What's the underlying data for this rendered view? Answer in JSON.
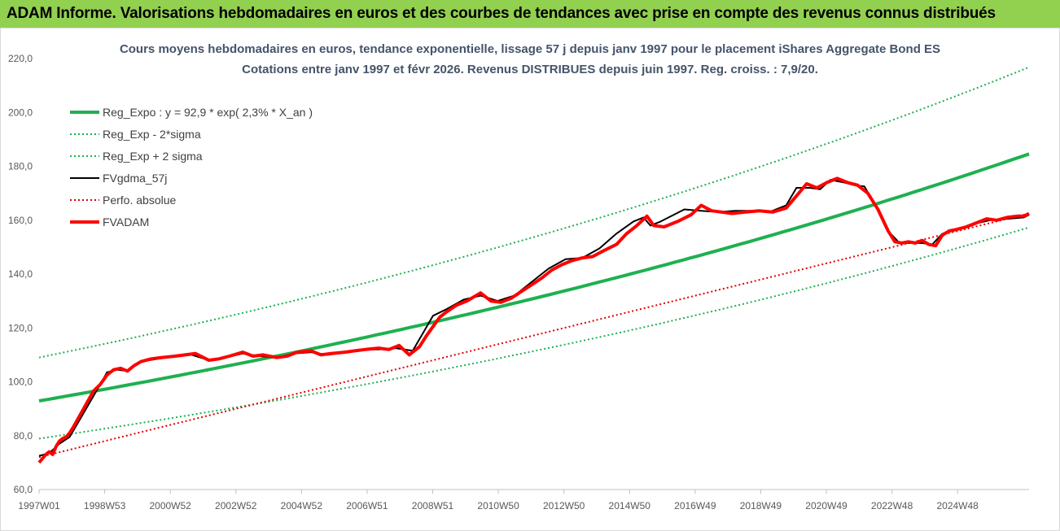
{
  "banner": {
    "title": "ADAM Informe. Valorisations hebdomadaires en euros et des courbes de tendances avec prise en compte des revenus connus distribués",
    "color": "#92d050"
  },
  "chart_data": {
    "type": "line",
    "title_line1": "Cours moyens hebdomadaires en euros, tendance exponentielle, lissage 57 j depuis janv 1997 pour le placement iShares Aggregate Bond ES",
    "title_line2": "Cotations entre janv 1997 et févr 2026. Revenus DISTRIBUES depuis juin 1997.  Reg. croiss. : 7,9/20.",
    "x_range": [
      1997.0,
      2026.15
    ],
    "ylim": [
      60,
      220
    ],
    "y_ticks": [
      "60,0",
      "80,0",
      "100,0",
      "120,0",
      "140,0",
      "160,0",
      "180,0",
      "200,0",
      "220,0"
    ],
    "x_tick_labels": [
      "1997W01",
      "1998W53",
      "2000W52",
      "2002W52",
      "2004W52",
      "2006W51",
      "2008W51",
      "2010W50",
      "2012W50",
      "2014W50",
      "2016W49",
      "2018W49",
      "2020W49",
      "2022W48",
      "2024W48"
    ],
    "legend_position": "top-left",
    "grid": false,
    "series": [
      {
        "name": "Reg_Expo : y = 92,9 * exp( 2,3% *  X_an )",
        "color": "#1fb050",
        "style": "solid-thick",
        "x": [
          1997.0,
          2026.15
        ],
        "values": [
          92.9,
          184.6
        ]
      },
      {
        "name": "Reg_Exp - 2*sigma",
        "color": "#1fb050",
        "style": "dotted",
        "x": [
          1997.0,
          2026.15
        ],
        "values": [
          78.9,
          157.3
        ]
      },
      {
        "name": "Reg_Exp + 2 sigma",
        "color": "#1fb050",
        "style": "dotted",
        "x": [
          1997.0,
          2026.15
        ],
        "values": [
          109.0,
          216.8
        ]
      },
      {
        "name": "FVgdma_57j",
        "color": "#000000",
        "style": "solid",
        "x": [
          1997.0,
          1997.3,
          1997.6,
          1997.9,
          1998.2,
          1998.5,
          1998.8,
          1999.0,
          1999.3,
          1999.6,
          2000.0,
          2000.5,
          2001.0,
          2001.5,
          2002.0,
          2002.5,
          2003.0,
          2003.5,
          2004.0,
          2004.5,
          2005.0,
          2005.5,
          2006.0,
          2006.5,
          2007.0,
          2007.5,
          2008.0,
          2008.3,
          2008.6,
          2009.0,
          2009.5,
          2010.0,
          2010.5,
          2011.0,
          2011.5,
          2012.0,
          2012.5,
          2013.0,
          2013.5,
          2014.0,
          2014.5,
          2014.8,
          2015.0,
          2015.3,
          2016.0,
          2016.5,
          2017.0,
          2017.5,
          2018.0,
          2018.5,
          2019.0,
          2019.3,
          2019.7,
          2020.0,
          2020.3,
          2020.7,
          2021.0,
          2021.3,
          2021.7,
          2022.0,
          2022.3,
          2022.5,
          2022.7,
          2023.0,
          2023.3,
          2023.6,
          2023.9,
          2024.2,
          2024.5,
          2025.0,
          2025.5,
          2026.0,
          2026.15
        ],
        "values": [
          72.5,
          73.5,
          77.0,
          79.5,
          86.0,
          92.5,
          99.0,
          103.5,
          104.5,
          104.0,
          107.5,
          108.5,
          109.5,
          110.0,
          108.0,
          109.0,
          110.5,
          109.5,
          109.0,
          110.5,
          111.0,
          110.0,
          111.0,
          112.0,
          112.0,
          112.5,
          111.5,
          118.0,
          124.5,
          127.0,
          130.5,
          132.0,
          130.0,
          132.0,
          137.0,
          142.0,
          145.5,
          146.0,
          149.5,
          155.0,
          159.5,
          161.0,
          158.0,
          159.5,
          164.0,
          163.5,
          163.0,
          163.5,
          163.5,
          163.0,
          165.5,
          172.0,
          172.0,
          171.5,
          175.0,
          174.0,
          173.0,
          172.5,
          164.0,
          156.0,
          152.0,
          151.5,
          151.5,
          151.5,
          151.0,
          155.0,
          156.0,
          157.0,
          158.5,
          160.0,
          160.5,
          161.0,
          162.0
        ]
      },
      {
        "name": "Perfo. absolue",
        "color": "#e00000",
        "style": "dotted",
        "x": [
          1997.0,
          2026.15
        ],
        "values": [
          72.0,
          162.5
        ]
      },
      {
        "name": "FVADAM",
        "color": "#ff0000",
        "style": "solid-thick",
        "x": [
          1997.0,
          1997.1,
          1997.2,
          1997.3,
          1997.4,
          1997.5,
          1997.6,
          1997.7,
          1997.8,
          1997.9,
          1998.0,
          1998.2,
          1998.4,
          1998.6,
          1998.8,
          1999.0,
          1999.2,
          1999.4,
          1999.6,
          1999.8,
          2000.0,
          2000.3,
          2000.6,
          2001.0,
          2001.3,
          2001.6,
          2002.0,
          2002.3,
          2002.6,
          2003.0,
          2003.3,
          2003.6,
          2004.0,
          2004.3,
          2004.6,
          2005.0,
          2005.3,
          2005.6,
          2006.0,
          2006.3,
          2006.6,
          2007.0,
          2007.3,
          2007.6,
          2007.9,
          2008.2,
          2008.4,
          2008.6,
          2008.8,
          2009.0,
          2009.3,
          2009.6,
          2010.0,
          2010.3,
          2010.6,
          2010.9,
          2011.2,
          2011.5,
          2011.8,
          2012.1,
          2012.4,
          2012.7,
          2013.0,
          2013.3,
          2013.6,
          2014.0,
          2014.3,
          2014.6,
          2014.9,
          2015.1,
          2015.4,
          2015.8,
          2016.2,
          2016.5,
          2016.8,
          2017.1,
          2017.4,
          2017.8,
          2018.2,
          2018.6,
          2019.0,
          2019.3,
          2019.6,
          2019.9,
          2020.2,
          2020.5,
          2020.8,
          2021.1,
          2021.4,
          2021.7,
          2022.0,
          2022.2,
          2022.4,
          2022.6,
          2022.8,
          2023.0,
          2023.2,
          2023.4,
          2023.6,
          2023.8,
          2024.0,
          2024.3,
          2024.6,
          2024.9,
          2025.2,
          2025.5,
          2025.8,
          2026.0,
          2026.15
        ],
        "values": [
          70.0,
          71.5,
          73.0,
          74.0,
          73.0,
          76.0,
          78.0,
          79.0,
          79.5,
          81.0,
          83.0,
          87.5,
          92.0,
          96.5,
          99.0,
          102.5,
          104.5,
          105.0,
          104.0,
          106.0,
          107.5,
          108.5,
          109.0,
          109.5,
          110.0,
          110.5,
          108.0,
          108.5,
          109.5,
          111.0,
          109.5,
          110.0,
          109.0,
          109.5,
          111.0,
          111.5,
          110.0,
          110.5,
          111.0,
          111.5,
          112.0,
          112.5,
          112.0,
          113.5,
          110.0,
          113.0,
          117.0,
          120.5,
          124.0,
          126.0,
          128.5,
          130.0,
          133.0,
          130.0,
          129.5,
          131.0,
          133.5,
          136.0,
          138.5,
          141.5,
          143.5,
          145.0,
          146.0,
          146.5,
          148.5,
          151.0,
          155.0,
          158.0,
          161.5,
          158.0,
          157.5,
          159.5,
          162.0,
          165.5,
          163.5,
          163.0,
          162.5,
          163.0,
          163.5,
          163.0,
          164.5,
          169.0,
          173.5,
          172.0,
          174.0,
          175.5,
          174.0,
          173.0,
          170.0,
          164.0,
          156.0,
          152.0,
          151.5,
          152.0,
          151.5,
          152.5,
          151.0,
          150.5,
          154.5,
          156.0,
          156.5,
          157.5,
          159.0,
          160.5,
          160.0,
          161.0,
          161.5,
          161.5,
          162.5
        ]
      }
    ]
  }
}
